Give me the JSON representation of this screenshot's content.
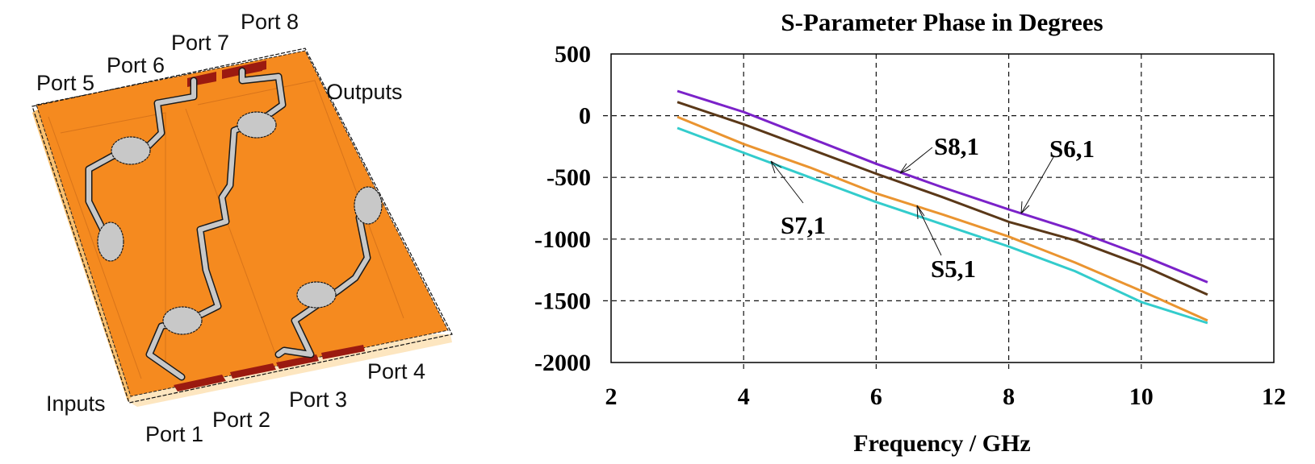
{
  "figure": {
    "left_panel": {
      "type": "circuit-layout-3d",
      "substrate_color": "#f58a1f",
      "trace_color": "#c8c8c8",
      "port_color": "#9b1a10",
      "labels": {
        "inputs": "Inputs",
        "outputs": "Outputs",
        "port1": "Port 1",
        "port2": "Port 2",
        "port3": "Port 3",
        "port4": "Port 4",
        "port5": "Port 5",
        "port6": "Port 6",
        "port7": "Port 7",
        "port8": "Port 8"
      }
    }
  },
  "chart_data": {
    "type": "line",
    "title": "S-Parameter Phase in Degrees",
    "xlabel": "Frequency / GHz",
    "ylabel": "",
    "xlim": [
      2,
      12
    ],
    "ylim": [
      -2000,
      500
    ],
    "xticks": [
      "2",
      "4",
      "6",
      "8",
      "10",
      "12"
    ],
    "yticks": [
      "500",
      "0",
      "-500",
      "-1000",
      "-1500",
      "-2000"
    ],
    "grid": true,
    "legend": "inline annotations with arrows",
    "x": [
      3,
      4,
      5,
      6,
      7,
      8,
      9,
      10,
      11
    ],
    "series": [
      {
        "name": "S6,1",
        "color": "#7b22c9",
        "values": [
          200,
          30,
          -180,
          -390,
          -580,
          -760,
          -930,
          -1130,
          -1350
        ]
      },
      {
        "name": "S8,1",
        "color": "#5a3818",
        "values": [
          110,
          -70,
          -270,
          -470,
          -660,
          -860,
          -1010,
          -1210,
          -1450
        ]
      },
      {
        "name": "S5,1",
        "color": "#ea9430",
        "values": [
          -10,
          -230,
          -420,
          -630,
          -800,
          -980,
          -1190,
          -1420,
          -1660
        ]
      },
      {
        "name": "S7,1",
        "color": "#33cccc",
        "values": [
          -100,
          -300,
          -500,
          -700,
          -880,
          -1060,
          -1260,
          -1510,
          -1680
        ]
      }
    ],
    "annotations": [
      {
        "text": "S8,1",
        "target": "S8,1"
      },
      {
        "text": "S6,1",
        "target": "S6,1"
      },
      {
        "text": "S7,1",
        "target": "S7,1"
      },
      {
        "text": "S5,1",
        "target": "S5,1"
      }
    ]
  }
}
